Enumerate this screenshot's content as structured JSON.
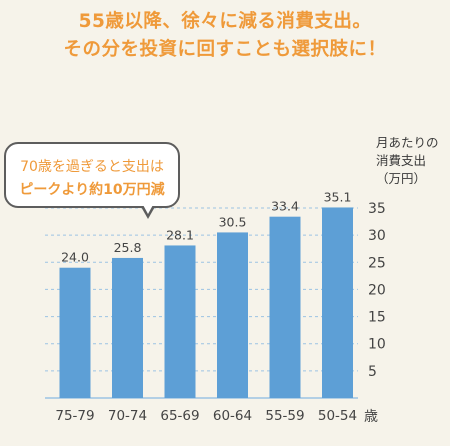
{
  "headline": {
    "line1": "55歳以降、徐々に減る消費支出。",
    "line2": "その分を投資に回すことも選択肢に！"
  },
  "callout": {
    "line1": "70歳を過ぎると支出は",
    "line2": "ピークより約10万円減"
  },
  "chart_data": {
    "type": "bar",
    "categories": [
      "75-79",
      "70-74",
      "65-69",
      "60-64",
      "55-59",
      "50-54"
    ],
    "values": [
      24.0,
      25.8,
      28.1,
      30.5,
      33.4,
      35.1
    ],
    "value_labels": [
      "24.0",
      "25.8",
      "28.1",
      "30.5",
      "33.4",
      "35.1"
    ],
    "x_unit": "歳",
    "ylabel_lines": [
      "月あたりの",
      "消費支出",
      "（万円）"
    ],
    "ylim": [
      0,
      35
    ],
    "yticks": [
      5,
      10,
      15,
      20,
      25,
      30,
      35
    ],
    "y_axis_side": "right",
    "grid": "dashed horizontal",
    "colors": {
      "bar": "#5d9fd6",
      "grid": "#9cc3e3",
      "text": "#444444"
    }
  }
}
